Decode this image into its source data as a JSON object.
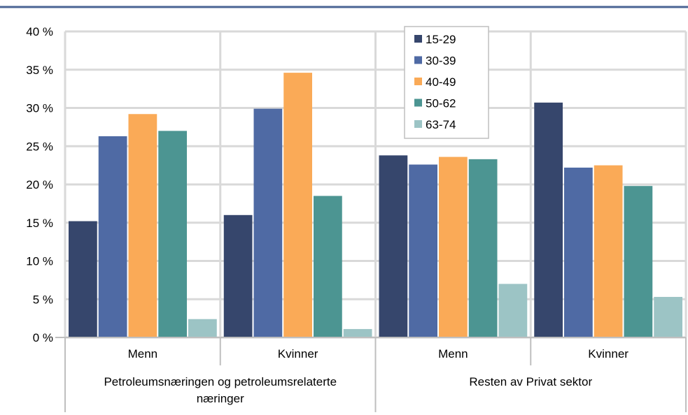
{
  "chart_data": {
    "type": "bar",
    "ylim": [
      0,
      40
    ],
    "yticks": [
      "0 %",
      "5 %",
      "10 %",
      "15 %",
      "20 %",
      "25 %",
      "30 %",
      "35 %",
      "40 %"
    ],
    "grid": true,
    "legend_position": "top-center",
    "categories": [
      "Menn",
      "Kvinner",
      "Menn",
      "Kvinner"
    ],
    "groups": [
      {
        "label_lines": [
          "Petroleumsnæringen og petroleumsrelaterte",
          "næringer"
        ]
      },
      {
        "label_lines": [
          "Resten av Privat sektor"
        ]
      }
    ],
    "series": [
      {
        "name": "15-29",
        "color": "#36466C",
        "values": [
          15.2,
          16.0,
          23.8,
          30.7
        ]
      },
      {
        "name": "30-39",
        "color": "#4F6AA4",
        "values": [
          26.3,
          29.9,
          22.6,
          22.2
        ]
      },
      {
        "name": "40-49",
        "color": "#FAAA57",
        "values": [
          29.2,
          34.6,
          23.6,
          22.5
        ]
      },
      {
        "name": "50-62",
        "color": "#4C9592",
        "values": [
          27.0,
          18.5,
          23.3,
          19.8
        ]
      },
      {
        "name": "63-74",
        "color": "#9CC4C5",
        "values": [
          2.4,
          1.1,
          7.0,
          5.3
        ]
      }
    ]
  }
}
